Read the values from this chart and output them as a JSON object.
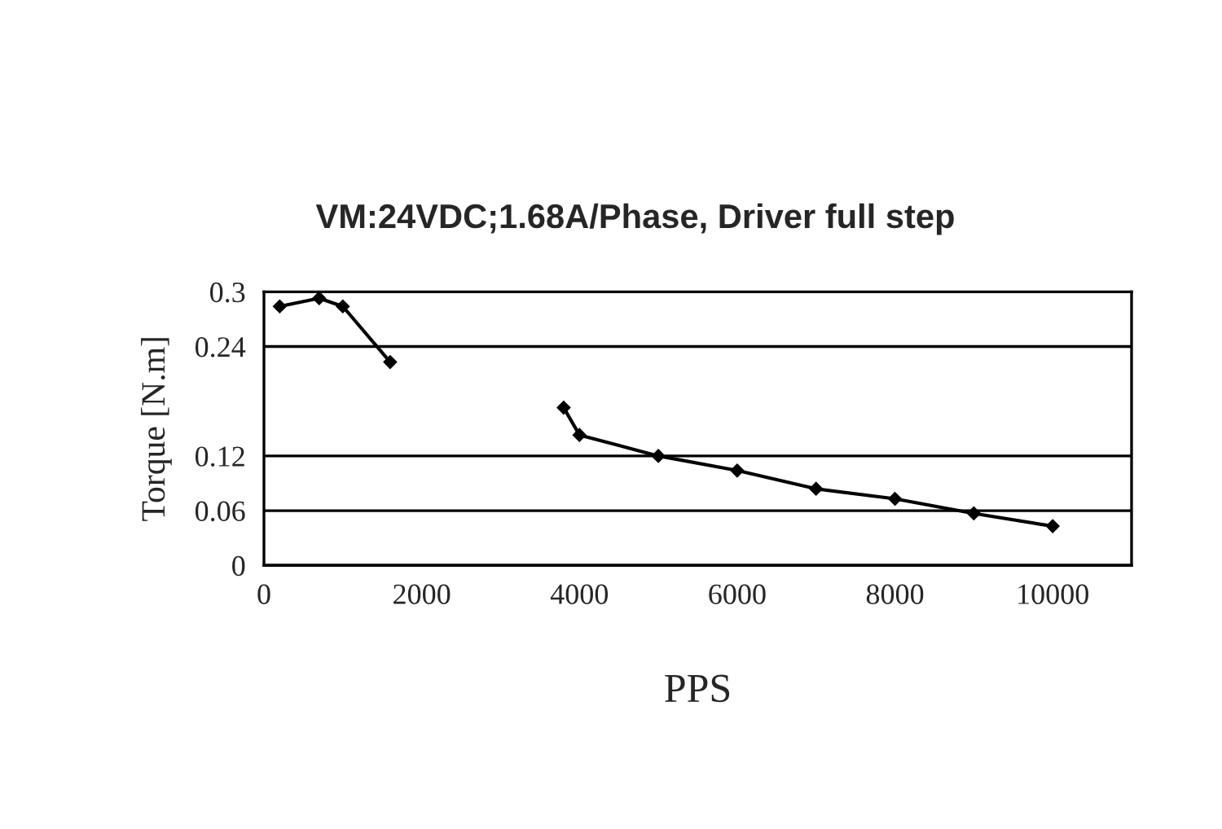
{
  "chart_data": {
    "type": "line",
    "subtitle": "VM:24VDC;1.68A/Phase, Driver full step",
    "xlabel": "PPS",
    "ylabel": "Torque [N.m]",
    "x": [
      200,
      700,
      1000,
      1600,
      2700,
      3800,
      4000,
      5000,
      6000,
      7000,
      8000,
      9000,
      10000
    ],
    "series": [
      {
        "color": "#000000",
        "values": [
          0.284,
          0.293,
          0.284,
          0.223,
          null,
          0.173,
          0.143,
          0.12,
          0.104,
          0.084,
          0.073,
          0.057,
          0.043
        ]
      }
    ],
    "xlim": [
      0,
      11000
    ],
    "xticks": [
      0,
      2000,
      4000,
      6000,
      8000,
      10000
    ],
    "ylim": [
      0,
      0.3
    ],
    "yticks": [
      0,
      0.06,
      0.12,
      0.24,
      0.3
    ],
    "grid": "y",
    "marker": "diamond",
    "line_style": "solid"
  }
}
